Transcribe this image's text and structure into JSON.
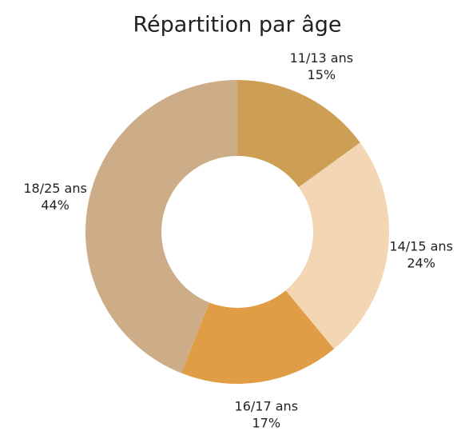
{
  "chart_data": {
    "type": "donut",
    "title": "Répartition par âge",
    "categories": [
      "11/13 ans",
      "14/15 ans",
      "16/17 ans",
      "18/25 ans"
    ],
    "values": [
      15,
      24,
      17,
      44
    ],
    "value_labels": [
      "15%",
      "24%",
      "17%",
      "44%"
    ],
    "colors": [
      "#cc9f55",
      "#f3d6b4",
      "#e09d45",
      "#cdad88"
    ]
  }
}
